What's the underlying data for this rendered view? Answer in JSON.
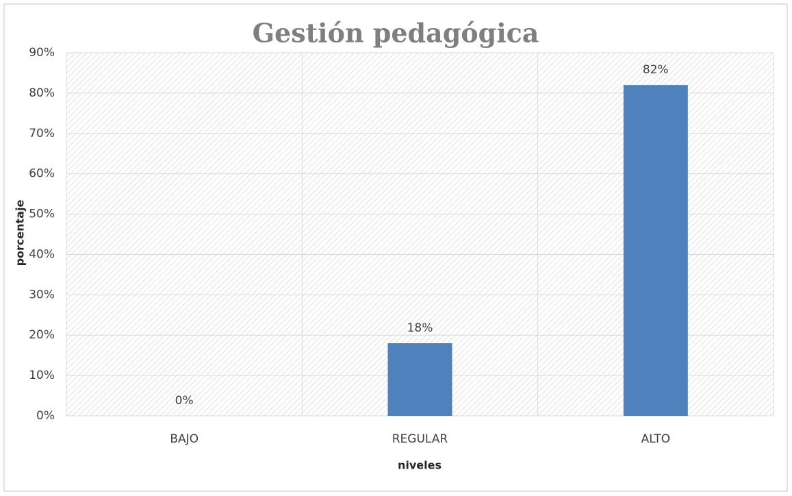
{
  "chart_data": {
    "type": "bar",
    "title": "Gestión pedagógica",
    "x_label": "niveles",
    "y_label": "porcentaje",
    "categories": [
      "BAJO",
      "REGULAR",
      "ALTO"
    ],
    "values": [
      0,
      18,
      82
    ],
    "value_labels": [
      "0%",
      "18%",
      "82%"
    ],
    "color": "#4f81bd",
    "ylim": [
      0,
      90
    ],
    "yticks": [
      {
        "value": 0,
        "label": "0%"
      },
      {
        "value": 10,
        "label": "10%"
      },
      {
        "value": 20,
        "label": "20%"
      },
      {
        "value": 30,
        "label": "30%"
      },
      {
        "value": 40,
        "label": "40%"
      },
      {
        "value": 50,
        "label": "50%"
      },
      {
        "value": 60,
        "label": "60%"
      },
      {
        "value": 70,
        "label": "70%"
      },
      {
        "value": 80,
        "label": "80%"
      },
      {
        "value": 90,
        "label": "90%"
      }
    ],
    "grid": true
  }
}
